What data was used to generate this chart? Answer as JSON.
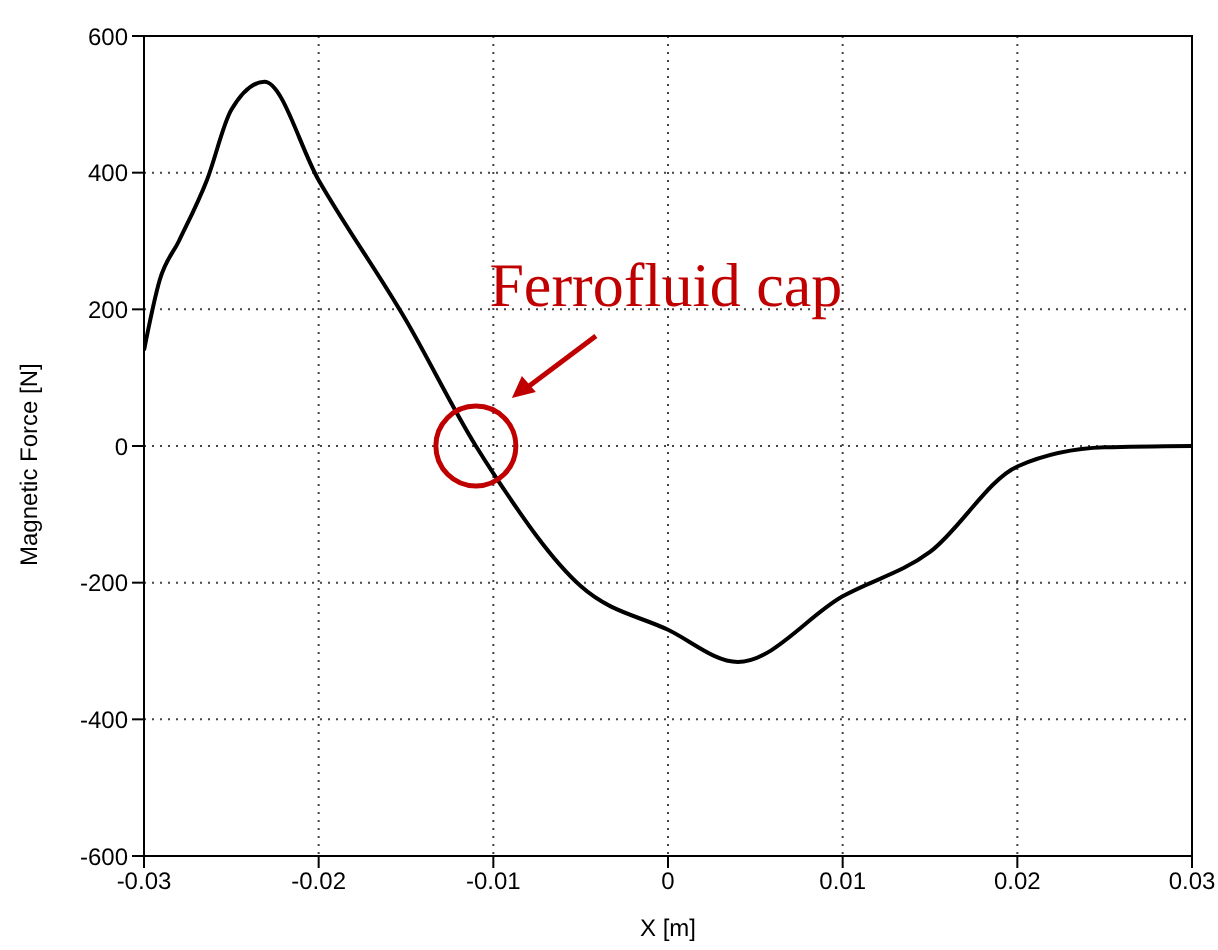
{
  "chart_data": {
    "type": "line",
    "xlabel": "X [m]",
    "ylabel": "Magnetic Force [N]",
    "x": [
      -0.03,
      -0.0291,
      -0.028,
      -0.0264,
      -0.025,
      -0.0231,
      -0.02,
      -0.015,
      -0.011,
      -0.01,
      -0.005,
      0,
      0.004,
      0.01,
      0.015,
      0.02,
      0.025,
      0.03
    ],
    "series": [
      {
        "color": "#000000",
        "values": [
          140,
          243,
          300,
          389,
          492,
          533,
          389,
          184,
          0,
          -40,
          -205,
          -269,
          -316,
          -220,
          -155,
          -30,
          -2,
          0
        ]
      }
    ],
    "xlim": [
      -0.03,
      0.03
    ],
    "xticks": [
      -0.03,
      -0.02,
      -0.01,
      0,
      0.01,
      0.02,
      0.03
    ],
    "ylim": [
      -600,
      600
    ],
    "yticks": [
      -600,
      -400,
      -200,
      0,
      200,
      400,
      600
    ],
    "grid": true,
    "marker": "none",
    "line_style": "solid",
    "annotations": [
      {
        "text": "Ferrofluid cap",
        "x": -0.011,
        "y": 0
      }
    ]
  }
}
